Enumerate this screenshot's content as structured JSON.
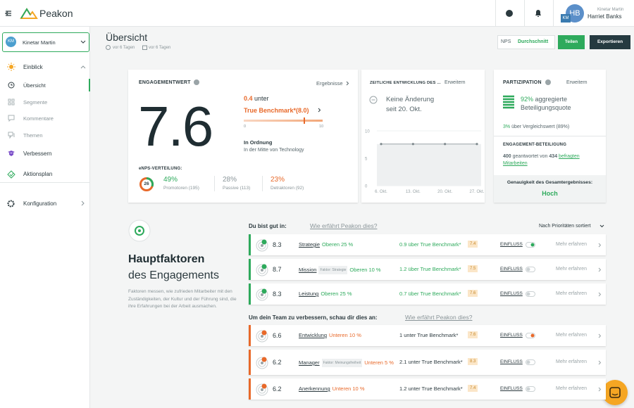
{
  "topbar": {
    "logo": "Peakon",
    "user_org": "Kinetar Martin",
    "user_name": "Harriet Banks",
    "user_initials": "HB",
    "org_initials": "KM"
  },
  "sidebar": {
    "account": "Kinetar Martin",
    "account_initials": "KM",
    "items": [
      "Einblick",
      "Übersicht",
      "Segmente",
      "Kommentare",
      "Themen",
      "Verbessern",
      "Aktionsplan",
      "Konfiguration"
    ]
  },
  "header": {
    "title": "Übersicht",
    "updated": [
      "vor 6 Tagen",
      "vor 6 Tagen"
    ],
    "toggle": [
      "NPS",
      "Durchschnitt"
    ],
    "share": "Teilen",
    "export": "Exportieren"
  },
  "engagement": {
    "title": "ENGAGEMENTWERT",
    "link": "Ergebnisse",
    "score": 7.6,
    "delta": 0.4,
    "delta_text": "unter",
    "benchmark": "True Benchmark*(8.0)",
    "scale": [
      0,
      10
    ],
    "status": "In Ordnung",
    "status_note": "In der Mitte von Technology",
    "enps_title": "eNPS-VERTEILUNG:",
    "enps": 26,
    "groups": [
      {
        "pct": "49%",
        "label": "Promotoren (195)"
      },
      {
        "pct": "28%",
        "label": "Passive (113)"
      },
      {
        "pct": "23%",
        "label": "Detraktoren (92)"
      }
    ]
  },
  "trend": {
    "title": "ZEITLICHE ENTWICKLUNG DES ...",
    "link": "Erweitern",
    "status": "Keine Änderung",
    "since": "seit 20. Okt.",
    "x": [
      "6. Okt.",
      "13. Okt.",
      "20. Okt.",
      "27. Okt."
    ],
    "values": [
      7.6,
      7.6,
      7.6,
      7.6
    ],
    "ylim": [
      0,
      10
    ],
    "yticks": [
      10,
      5,
      0
    ]
  },
  "participation": {
    "title": "PARTIZIPATION",
    "link": "Erweitern",
    "rate": "92%",
    "rate_text": "aggregierte Beteiligungsquote",
    "compare": "3%",
    "compare_text": "über Vergleichswert (89%)",
    "engagement_title": "ENGAGEMENT-BETEILIGUNG",
    "answered": 400,
    "answered_text": "geantwortet von",
    "asked": 434,
    "asked_text": "befragten Mitarbeiten",
    "accuracy_title": "Genauigkeit des Gesamtergebnisses:",
    "accuracy": "Hoch"
  },
  "factors": {
    "title": "Hauptfaktoren",
    "subtitle": "des Engagements",
    "description": "Faktoren messen, wie zufrieden Mitarbeiter mit den Zuständigkeiten, der Kultur und der Führung sind, die ihre Erfahrungen bei der Arbeit ausmachen.",
    "sort": "Nach Prioritäten sortiert",
    "impact": "EINFLUSS",
    "more": "Mehr erfahren",
    "strengths": {
      "title": "Du bist gut in:",
      "link": "Wie erfährt Peakon dies?",
      "rows": [
        {
          "score": 8.3,
          "name": "Strategie",
          "rank": "Oberen 25 %",
          "bench": "0.9 über True Benchmark*",
          "badge": 7.4
        },
        {
          "score": 8.7,
          "name": "Mission",
          "tag": "Faktor: Strategie",
          "rank": "Oberen 10 %",
          "bench": "1.2 über True Benchmark*",
          "badge": 7.5
        },
        {
          "score": 8.3,
          "name": "Leistung",
          "rank": "Oberen 25 %",
          "bench": "0.7 über True Benchmark*",
          "badge": 7.6
        }
      ]
    },
    "improve": {
      "title": "Um dein Team zu verbessern, schau dir dies an:",
      "link": "Wie erfährt Peakon dies?",
      "rows": [
        {
          "score": 6.6,
          "name": "Entwicklung",
          "rank": "Unteren 10 %",
          "bench": "1 unter True Benchmark*",
          "badge": 7.6
        },
        {
          "score": 6.2,
          "name": "Manager",
          "tag": "Faktor: Meinungsfreiheit",
          "rank": "Unteren 5 %",
          "bench": "2.1 unter True Benchmark*",
          "badge": 8.3
        },
        {
          "score": 6.2,
          "name": "Anerkennung",
          "rank": "Unteren 10 %",
          "bench": "1.2 unter True Benchmark*",
          "badge": 7.4
        }
      ]
    }
  }
}
